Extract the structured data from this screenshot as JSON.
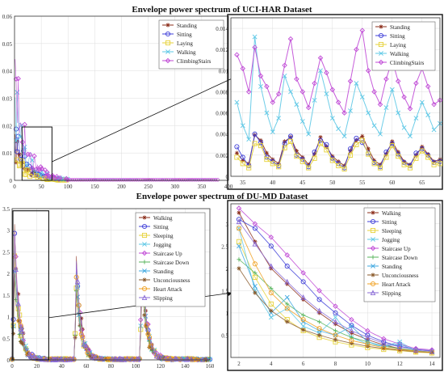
{
  "titles": {
    "top": "Envelope power spectrum of UCI-HAR Dataset",
    "bottom": "Envelope power spectrum of DU-MD Dataset"
  },
  "chart_data": [
    {
      "id": "uci-main",
      "type": "line",
      "xlim": [
        0,
        400
      ],
      "ylim": [
        0,
        0.06
      ],
      "xticks": [
        "0",
        "50",
        "100",
        "150",
        "200",
        "250",
        "300",
        "350",
        "400"
      ],
      "yticks": [
        "0",
        "0.01",
        "0.02",
        "0.03",
        "0.04",
        "0.05",
        "0.06"
      ],
      "legend_position": "top-right",
      "series_names": [
        "Standing",
        "Sitting",
        "Laying",
        "Walking",
        "ClimbingStairs"
      ],
      "series_colors": [
        "#8b2d1a",
        "#3f3fd8",
        "#e6d23a",
        "#5ec8e6",
        "#c04ad6"
      ],
      "series_markers": [
        "star",
        "circle",
        "square",
        "x",
        "diamond"
      ],
      "peaks": [
        0.019,
        0.026,
        0.013,
        0.043,
        0.052
      ],
      "zoom_box_x": [
        14,
        70
      ],
      "zoom_box_y": [
        0,
        0.0195
      ]
    },
    {
      "id": "uci-zoom",
      "type": "line",
      "xlim": [
        33,
        68
      ],
      "ylim": [
        0,
        0.015
      ],
      "xticks": [
        "35",
        "40",
        "45",
        "50",
        "55",
        "60",
        "65"
      ],
      "yticks": [
        "0",
        "0.002",
        "0.004",
        "0.006",
        "0.008",
        "0.01",
        "0.012",
        "0.014"
      ],
      "legend_position": "top-right",
      "x": [
        34,
        35,
        36,
        37,
        38,
        39,
        40,
        41,
        42,
        43,
        44,
        45,
        46,
        47,
        48,
        49,
        50,
        51,
        52,
        53,
        54,
        55,
        56,
        57,
        58,
        59,
        60,
        61,
        62,
        63,
        64,
        65,
        66,
        67,
        68
      ],
      "series": [
        {
          "name": "Standing",
          "values": [
            0.0022,
            0.0015,
            0.0012,
            0.0039,
            0.0034,
            0.0022,
            0.0016,
            0.0012,
            0.0033,
            0.0037,
            0.0024,
            0.0018,
            0.0011,
            0.0021,
            0.0037,
            0.0028,
            0.0019,
            0.0014,
            0.001,
            0.0024,
            0.0034,
            0.0038,
            0.0026,
            0.0015,
            0.0011,
            0.0021,
            0.0033,
            0.0023,
            0.0014,
            0.0011,
            0.002,
            0.0028,
            0.0021,
            0.0014,
            0.0016
          ]
        },
        {
          "name": "Sitting",
          "values": [
            0.0028,
            0.0018,
            0.001,
            0.004,
            0.0032,
            0.0018,
            0.0014,
            0.001,
            0.0031,
            0.0038,
            0.002,
            0.0016,
            0.0009,
            0.0023,
            0.0034,
            0.003,
            0.0017,
            0.0012,
            0.0008,
            0.0026,
            0.0036,
            0.0032,
            0.0022,
            0.0013,
            0.0009,
            0.0023,
            0.0031,
            0.0021,
            0.0013,
            0.001,
            0.0022,
            0.0026,
            0.002,
            0.0013,
            0.0014
          ]
        },
        {
          "name": "Laying",
          "values": [
            0.0018,
            0.0012,
            0.0008,
            0.0031,
            0.0029,
            0.0016,
            0.0012,
            0.0009,
            0.0027,
            0.0033,
            0.0019,
            0.0014,
            0.0008,
            0.0017,
            0.0031,
            0.0025,
            0.0015,
            0.001,
            0.0007,
            0.002,
            0.003,
            0.0034,
            0.0021,
            0.0012,
            0.0008,
            0.0018,
            0.0029,
            0.0019,
            0.0011,
            0.0008,
            0.0017,
            0.0024,
            0.0018,
            0.0011,
            0.0012
          ]
        },
        {
          "name": "Walking",
          "values": [
            0.007,
            0.0048,
            0.0035,
            0.0132,
            0.0085,
            0.006,
            0.0042,
            0.0055,
            0.0095,
            0.008,
            0.0068,
            0.0052,
            0.004,
            0.0072,
            0.01,
            0.0078,
            0.0055,
            0.0045,
            0.0038,
            0.0062,
            0.0088,
            0.0075,
            0.006,
            0.0048,
            0.004,
            0.0065,
            0.0082,
            0.006,
            0.0046,
            0.0038,
            0.0055,
            0.007,
            0.0058,
            0.0044,
            0.005
          ]
        },
        {
          "name": "ClimbingStairs",
          "values": [
            0.0115,
            0.0102,
            0.008,
            0.0122,
            0.0095,
            0.0085,
            0.007,
            0.0078,
            0.0105,
            0.013,
            0.0092,
            0.008,
            0.0065,
            0.0088,
            0.0112,
            0.0098,
            0.0082,
            0.007,
            0.006,
            0.009,
            0.012,
            0.0138,
            0.01,
            0.008,
            0.0068,
            0.0092,
            0.011,
            0.009,
            0.0075,
            0.0064,
            0.0088,
            0.0102,
            0.0085,
            0.0068,
            0.0072
          ]
        }
      ]
    },
    {
      "id": "du-main",
      "type": "line",
      "xlim": [
        0,
        160
      ],
      "ylim": [
        0,
        3.5
      ],
      "xticks": [
        "0",
        "20",
        "40",
        "60",
        "80",
        "100",
        "120",
        "140",
        "160"
      ],
      "yticks": [
        "0",
        "0.5",
        "1",
        "1.5",
        "2",
        "2.5",
        "3",
        "3.5"
      ],
      "legend_position": "top-right",
      "series_names": [
        "Walking",
        "Sitting",
        "Sleeping",
        "Jogging",
        "Staircase Up",
        "Staircase Down",
        "Standing",
        "Unconciousness",
        "Heart Attack",
        "Slipping"
      ],
      "series_colors": [
        "#8b2d1a",
        "#3f3fd8",
        "#e6d23a",
        "#5ec8e6",
        "#c04ad6",
        "#56b35a",
        "#3fa8e0",
        "#8a5a2b",
        "#f0a020",
        "#8a6ad6"
      ],
      "series_markers": [
        "star",
        "circle",
        "square",
        "x",
        "diamond",
        "plus",
        "x",
        "star",
        "circle",
        "triangle"
      ],
      "peak_groups": [
        {
          "x": 2,
          "peaks": [
            3.25,
            3.1,
            2.6,
            2.9,
            3.35,
            2.2,
            2.5,
            2.0,
            2.9,
            3.05
          ]
        },
        {
          "x": 52,
          "peaks": [
            2.5,
            2.4,
            2.0,
            2.2,
            2.45,
            1.9,
            2.1,
            1.7,
            2.3,
            2.35
          ]
        },
        {
          "x": 105,
          "peaks": [
            2.95,
            2.8,
            2.3,
            2.6,
            3.0,
            2.1,
            2.4,
            1.9,
            2.7,
            2.85
          ]
        }
      ],
      "zoom_box_x": [
        0,
        29
      ],
      "zoom_box_y": [
        0,
        3.45
      ]
    },
    {
      "id": "du-zoom",
      "type": "line",
      "xlim": [
        1.5,
        14.5
      ],
      "ylim": [
        0,
        3.45
      ],
      "xticks": [
        "2",
        "4",
        "6",
        "8",
        "10",
        "12",
        "14"
      ],
      "yticks": [
        "0.5",
        "1",
        "1.5",
        "2",
        "2.5",
        "3"
      ],
      "legend_position": "top-right",
      "x": [
        2,
        3,
        4,
        5,
        6,
        7,
        8,
        9,
        10,
        11,
        12,
        13,
        14
      ],
      "series": [
        {
          "name": "Walking",
          "values": [
            3.25,
            2.6,
            2.0,
            1.65,
            1.3,
            1.0,
            0.75,
            0.55,
            0.4,
            0.28,
            0.2,
            0.14,
            0.12
          ]
        },
        {
          "name": "Sitting",
          "values": [
            3.1,
            2.9,
            2.5,
            2.05,
            1.7,
            1.3,
            1.0,
            0.72,
            0.5,
            0.35,
            0.25,
            0.18,
            0.15
          ]
        },
        {
          "name": "Sleeping",
          "values": [
            2.6,
            1.8,
            1.2,
            0.85,
            0.6,
            0.45,
            0.35,
            0.28,
            0.22,
            0.18,
            0.15,
            0.12,
            0.1
          ]
        },
        {
          "name": "Jogging",
          "values": [
            2.9,
            1.5,
            0.9,
            1.1,
            0.7,
            0.55,
            0.9,
            0.45,
            0.3,
            0.25,
            0.35,
            0.15,
            0.12
          ]
        },
        {
          "name": "Staircase Up",
          "values": [
            3.35,
            3.0,
            2.7,
            2.3,
            1.9,
            1.5,
            1.15,
            0.85,
            0.6,
            0.42,
            0.3,
            0.2,
            0.17
          ]
        },
        {
          "name": "Staircase Down",
          "values": [
            2.2,
            1.9,
            1.55,
            1.2,
            0.95,
            0.8,
            0.6,
            0.45,
            0.35,
            0.25,
            0.2,
            0.15,
            0.12
          ]
        },
        {
          "name": "Standing",
          "values": [
            2.5,
            1.6,
            1.0,
            1.35,
            0.8,
            0.6,
            0.5,
            0.7,
            0.35,
            0.25,
            0.3,
            0.15,
            0.12
          ]
        },
        {
          "name": "Unconciousness",
          "values": [
            2.0,
            1.45,
            1.05,
            0.8,
            0.62,
            0.5,
            0.4,
            0.32,
            0.25,
            0.2,
            0.16,
            0.13,
            0.11
          ]
        },
        {
          "name": "Heart Attack",
          "values": [
            2.9,
            2.1,
            1.45,
            1.1,
            0.85,
            0.65,
            0.5,
            0.38,
            0.3,
            0.22,
            0.18,
            0.14,
            0.12
          ]
        },
        {
          "name": "Slipping",
          "values": [
            3.05,
            2.55,
            2.05,
            1.7,
            1.35,
            1.05,
            0.8,
            0.6,
            0.45,
            0.32,
            0.24,
            0.17,
            0.14
          ]
        }
      ]
    }
  ]
}
